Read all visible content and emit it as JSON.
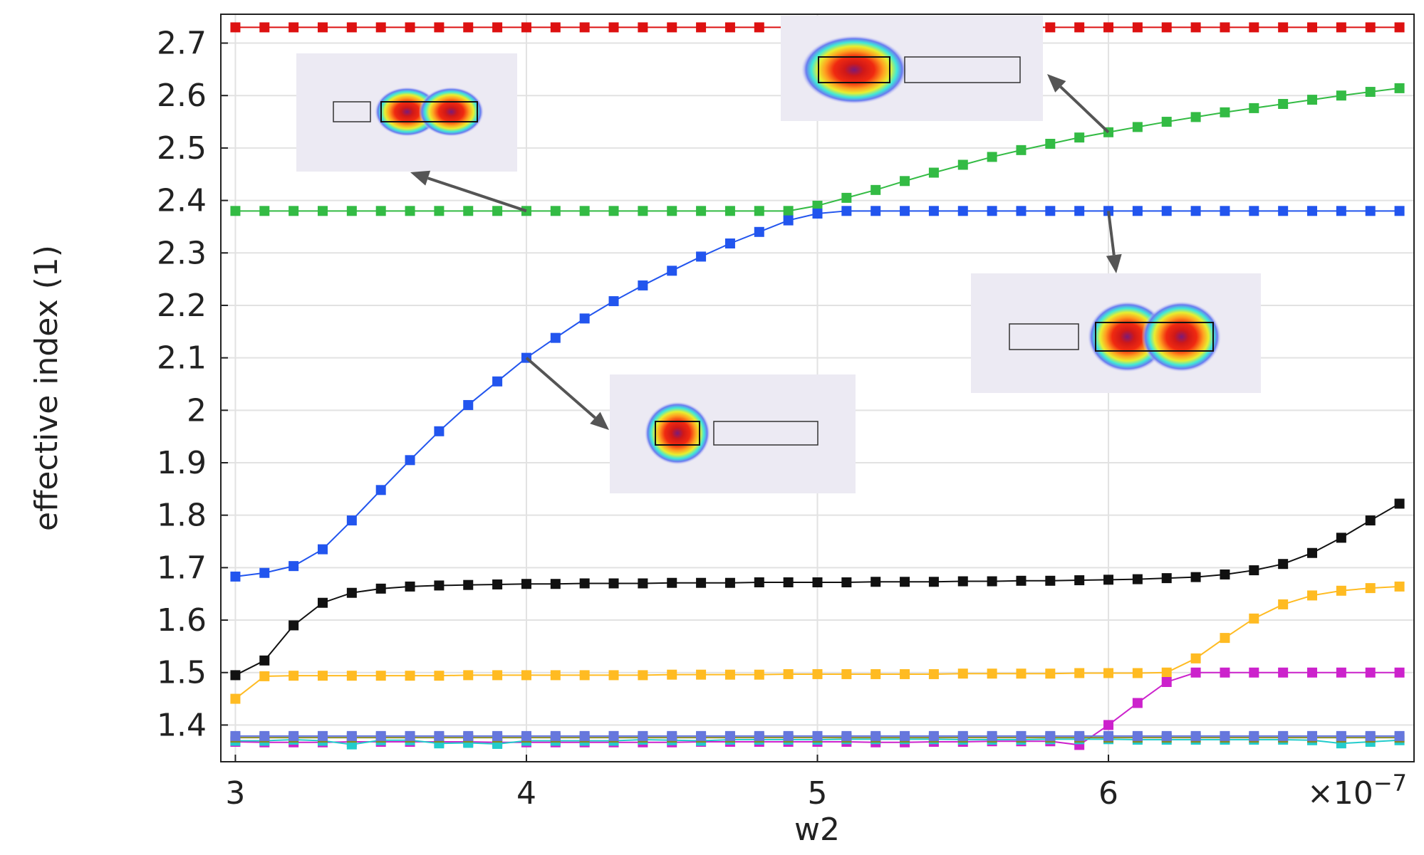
{
  "chart_data": {
    "type": "line",
    "xlabel": "w2",
    "ylabel": "effective index (1)",
    "x_exponent_label": "×10",
    "x_exponent_power": "−7",
    "xlim": [
      2.95,
      7.05
    ],
    "ylim": [
      1.33,
      2.755
    ],
    "x_ticks": [
      {
        "value": 3,
        "label": "3"
      },
      {
        "value": 4,
        "label": "4"
      },
      {
        "value": 5,
        "label": "5"
      },
      {
        "value": 6,
        "label": "6"
      }
    ],
    "y_ticks": [
      {
        "value": 1.4,
        "label": "1.4"
      },
      {
        "value": 1.5,
        "label": "1.5"
      },
      {
        "value": 1.6,
        "label": "1.6"
      },
      {
        "value": 1.7,
        "label": "1.7"
      },
      {
        "value": 1.8,
        "label": "1.8"
      },
      {
        "value": 1.9,
        "label": "1.9"
      },
      {
        "value": 2.0,
        "label": "2"
      },
      {
        "value": 2.1,
        "label": "2.1"
      },
      {
        "value": 2.2,
        "label": "2.2"
      },
      {
        "value": 2.3,
        "label": "2.3"
      },
      {
        "value": 2.4,
        "label": "2.4"
      },
      {
        "value": 2.5,
        "label": "2.5"
      },
      {
        "value": 2.6,
        "label": "2.6"
      },
      {
        "value": 2.7,
        "label": "2.7"
      }
    ],
    "grid": true,
    "legend": "none",
    "x": [
      3.0,
      3.1,
      3.2,
      3.3,
      3.4,
      3.5,
      3.6,
      3.7,
      3.8,
      3.9,
      4.0,
      4.1,
      4.2,
      4.3,
      4.4,
      4.5,
      4.6,
      4.7,
      4.8,
      4.9,
      5.0,
      5.1,
      5.2,
      5.3,
      5.4,
      5.5,
      5.6,
      5.7,
      5.8,
      5.9,
      6.0,
      6.1,
      6.2,
      6.3,
      6.4,
      6.5,
      6.6,
      6.7,
      6.8,
      6.9,
      7.0
    ],
    "series": [
      {
        "color": "#dd1111",
        "values": [
          2.73,
          2.73,
          2.73,
          2.73,
          2.73,
          2.73,
          2.73,
          2.73,
          2.73,
          2.73,
          2.73,
          2.73,
          2.73,
          2.73,
          2.73,
          2.73,
          2.73,
          2.73,
          2.73,
          2.73,
          2.73,
          2.73,
          2.73,
          2.73,
          2.73,
          2.73,
          2.73,
          2.73,
          2.73,
          2.73,
          2.73,
          2.73,
          2.73,
          2.73,
          2.73,
          2.73,
          2.73,
          2.73,
          2.73,
          2.73,
          2.73
        ]
      },
      {
        "color": "#33bb44",
        "values": [
          2.38,
          2.38,
          2.38,
          2.38,
          2.38,
          2.38,
          2.38,
          2.38,
          2.38,
          2.38,
          2.38,
          2.38,
          2.38,
          2.38,
          2.38,
          2.38,
          2.38,
          2.38,
          2.38,
          2.38,
          2.39,
          2.405,
          2.42,
          2.437,
          2.453,
          2.468,
          2.483,
          2.496,
          2.508,
          2.52,
          2.53,
          2.54,
          2.55,
          2.559,
          2.568,
          2.576,
          2.584,
          2.592,
          2.6,
          2.607,
          2.614
        ]
      },
      {
        "color": "#2255ee",
        "values": [
          1.683,
          1.69,
          1.703,
          1.735,
          1.79,
          1.848,
          1.905,
          1.96,
          2.01,
          2.055,
          2.1,
          2.138,
          2.175,
          2.208,
          2.238,
          2.266,
          2.293,
          2.318,
          2.34,
          2.362,
          2.375,
          2.38,
          2.38,
          2.38,
          2.38,
          2.38,
          2.38,
          2.38,
          2.38,
          2.38,
          2.38,
          2.38,
          2.38,
          2.38,
          2.38,
          2.38,
          2.38,
          2.38,
          2.38,
          2.38,
          2.38
        ]
      },
      {
        "color": "#111111",
        "values": [
          1.495,
          1.523,
          1.59,
          1.633,
          1.652,
          1.66,
          1.664,
          1.666,
          1.667,
          1.668,
          1.669,
          1.669,
          1.67,
          1.67,
          1.67,
          1.671,
          1.671,
          1.671,
          1.672,
          1.672,
          1.672,
          1.672,
          1.673,
          1.673,
          1.673,
          1.674,
          1.674,
          1.675,
          1.675,
          1.676,
          1.677,
          1.678,
          1.68,
          1.682,
          1.687,
          1.695,
          1.707,
          1.728,
          1.757,
          1.79,
          1.822
        ]
      },
      {
        "color": "#ffbb22",
        "values": [
          1.45,
          1.493,
          1.494,
          1.494,
          1.494,
          1.494,
          1.494,
          1.494,
          1.495,
          1.495,
          1.495,
          1.495,
          1.495,
          1.495,
          1.495,
          1.496,
          1.496,
          1.496,
          1.496,
          1.497,
          1.497,
          1.497,
          1.497,
          1.497,
          1.497,
          1.498,
          1.498,
          1.498,
          1.498,
          1.499,
          1.499,
          1.499,
          1.5,
          1.527,
          1.566,
          1.603,
          1.63,
          1.647,
          1.656,
          1.661,
          1.664
        ]
      },
      {
        "color": "#cc22cc",
        "values": [
          1.368,
          1.367,
          1.367,
          1.367,
          1.368,
          1.368,
          1.368,
          1.368,
          1.368,
          1.367,
          1.367,
          1.367,
          1.367,
          1.367,
          1.367,
          1.367,
          1.368,
          1.368,
          1.368,
          1.368,
          1.368,
          1.368,
          1.367,
          1.367,
          1.368,
          1.368,
          1.369,
          1.369,
          1.369,
          1.362,
          1.4,
          1.442,
          1.482,
          1.5,
          1.5,
          1.5,
          1.5,
          1.5,
          1.5,
          1.5,
          1.5
        ]
      },
      {
        "color": "#22cccc",
        "values": [
          1.37,
          1.37,
          1.372,
          1.37,
          1.363,
          1.371,
          1.371,
          1.365,
          1.366,
          1.364,
          1.37,
          1.37,
          1.37,
          1.37,
          1.372,
          1.371,
          1.37,
          1.372,
          1.372,
          1.372,
          1.372,
          1.373,
          1.373,
          1.373,
          1.373,
          1.372,
          1.372,
          1.372,
          1.373,
          1.373,
          1.373,
          1.372,
          1.372,
          1.372,
          1.372,
          1.372,
          1.372,
          1.371,
          1.365,
          1.368,
          1.371
        ]
      },
      {
        "color": "#888822",
        "values": [
          1.376,
          1.376,
          1.376,
          1.376,
          1.376,
          1.376,
          1.376,
          1.376,
          1.376,
          1.376,
          1.376,
          1.376,
          1.376,
          1.376,
          1.376,
          1.376,
          1.376,
          1.376,
          1.376,
          1.376,
          1.376,
          1.376,
          1.376,
          1.376,
          1.376,
          1.376,
          1.376,
          1.376,
          1.376,
          1.376,
          1.376,
          1.376,
          1.376,
          1.376,
          1.376,
          1.376,
          1.376,
          1.376,
          1.376,
          1.376,
          1.376
        ]
      },
      {
        "color": "#6677dd",
        "values": [
          1.379,
          1.379,
          1.379,
          1.379,
          1.379,
          1.379,
          1.379,
          1.379,
          1.379,
          1.379,
          1.379,
          1.379,
          1.379,
          1.379,
          1.379,
          1.379,
          1.379,
          1.379,
          1.379,
          1.379,
          1.379,
          1.379,
          1.379,
          1.379,
          1.379,
          1.379,
          1.379,
          1.379,
          1.379,
          1.379,
          1.379,
          1.379,
          1.379,
          1.379,
          1.379,
          1.379,
          1.379,
          1.379,
          1.379,
          1.379,
          1.379
        ]
      }
    ],
    "mode_insets": [
      {
        "name": "mode-inset-top-left",
        "anchor": [
          4.0,
          2.38
        ],
        "spots": 2,
        "field_in": "right"
      },
      {
        "name": "mode-inset-top-center",
        "anchor": [
          6.0,
          2.53
        ],
        "spots": 1,
        "field_in": "left"
      },
      {
        "name": "mode-inset-right",
        "anchor": [
          6.0,
          2.38
        ],
        "spots": 2,
        "field_in": "right"
      },
      {
        "name": "mode-inset-center",
        "anchor": [
          4.0,
          2.1
        ],
        "spots": 1,
        "field_in": "left"
      }
    ]
  }
}
